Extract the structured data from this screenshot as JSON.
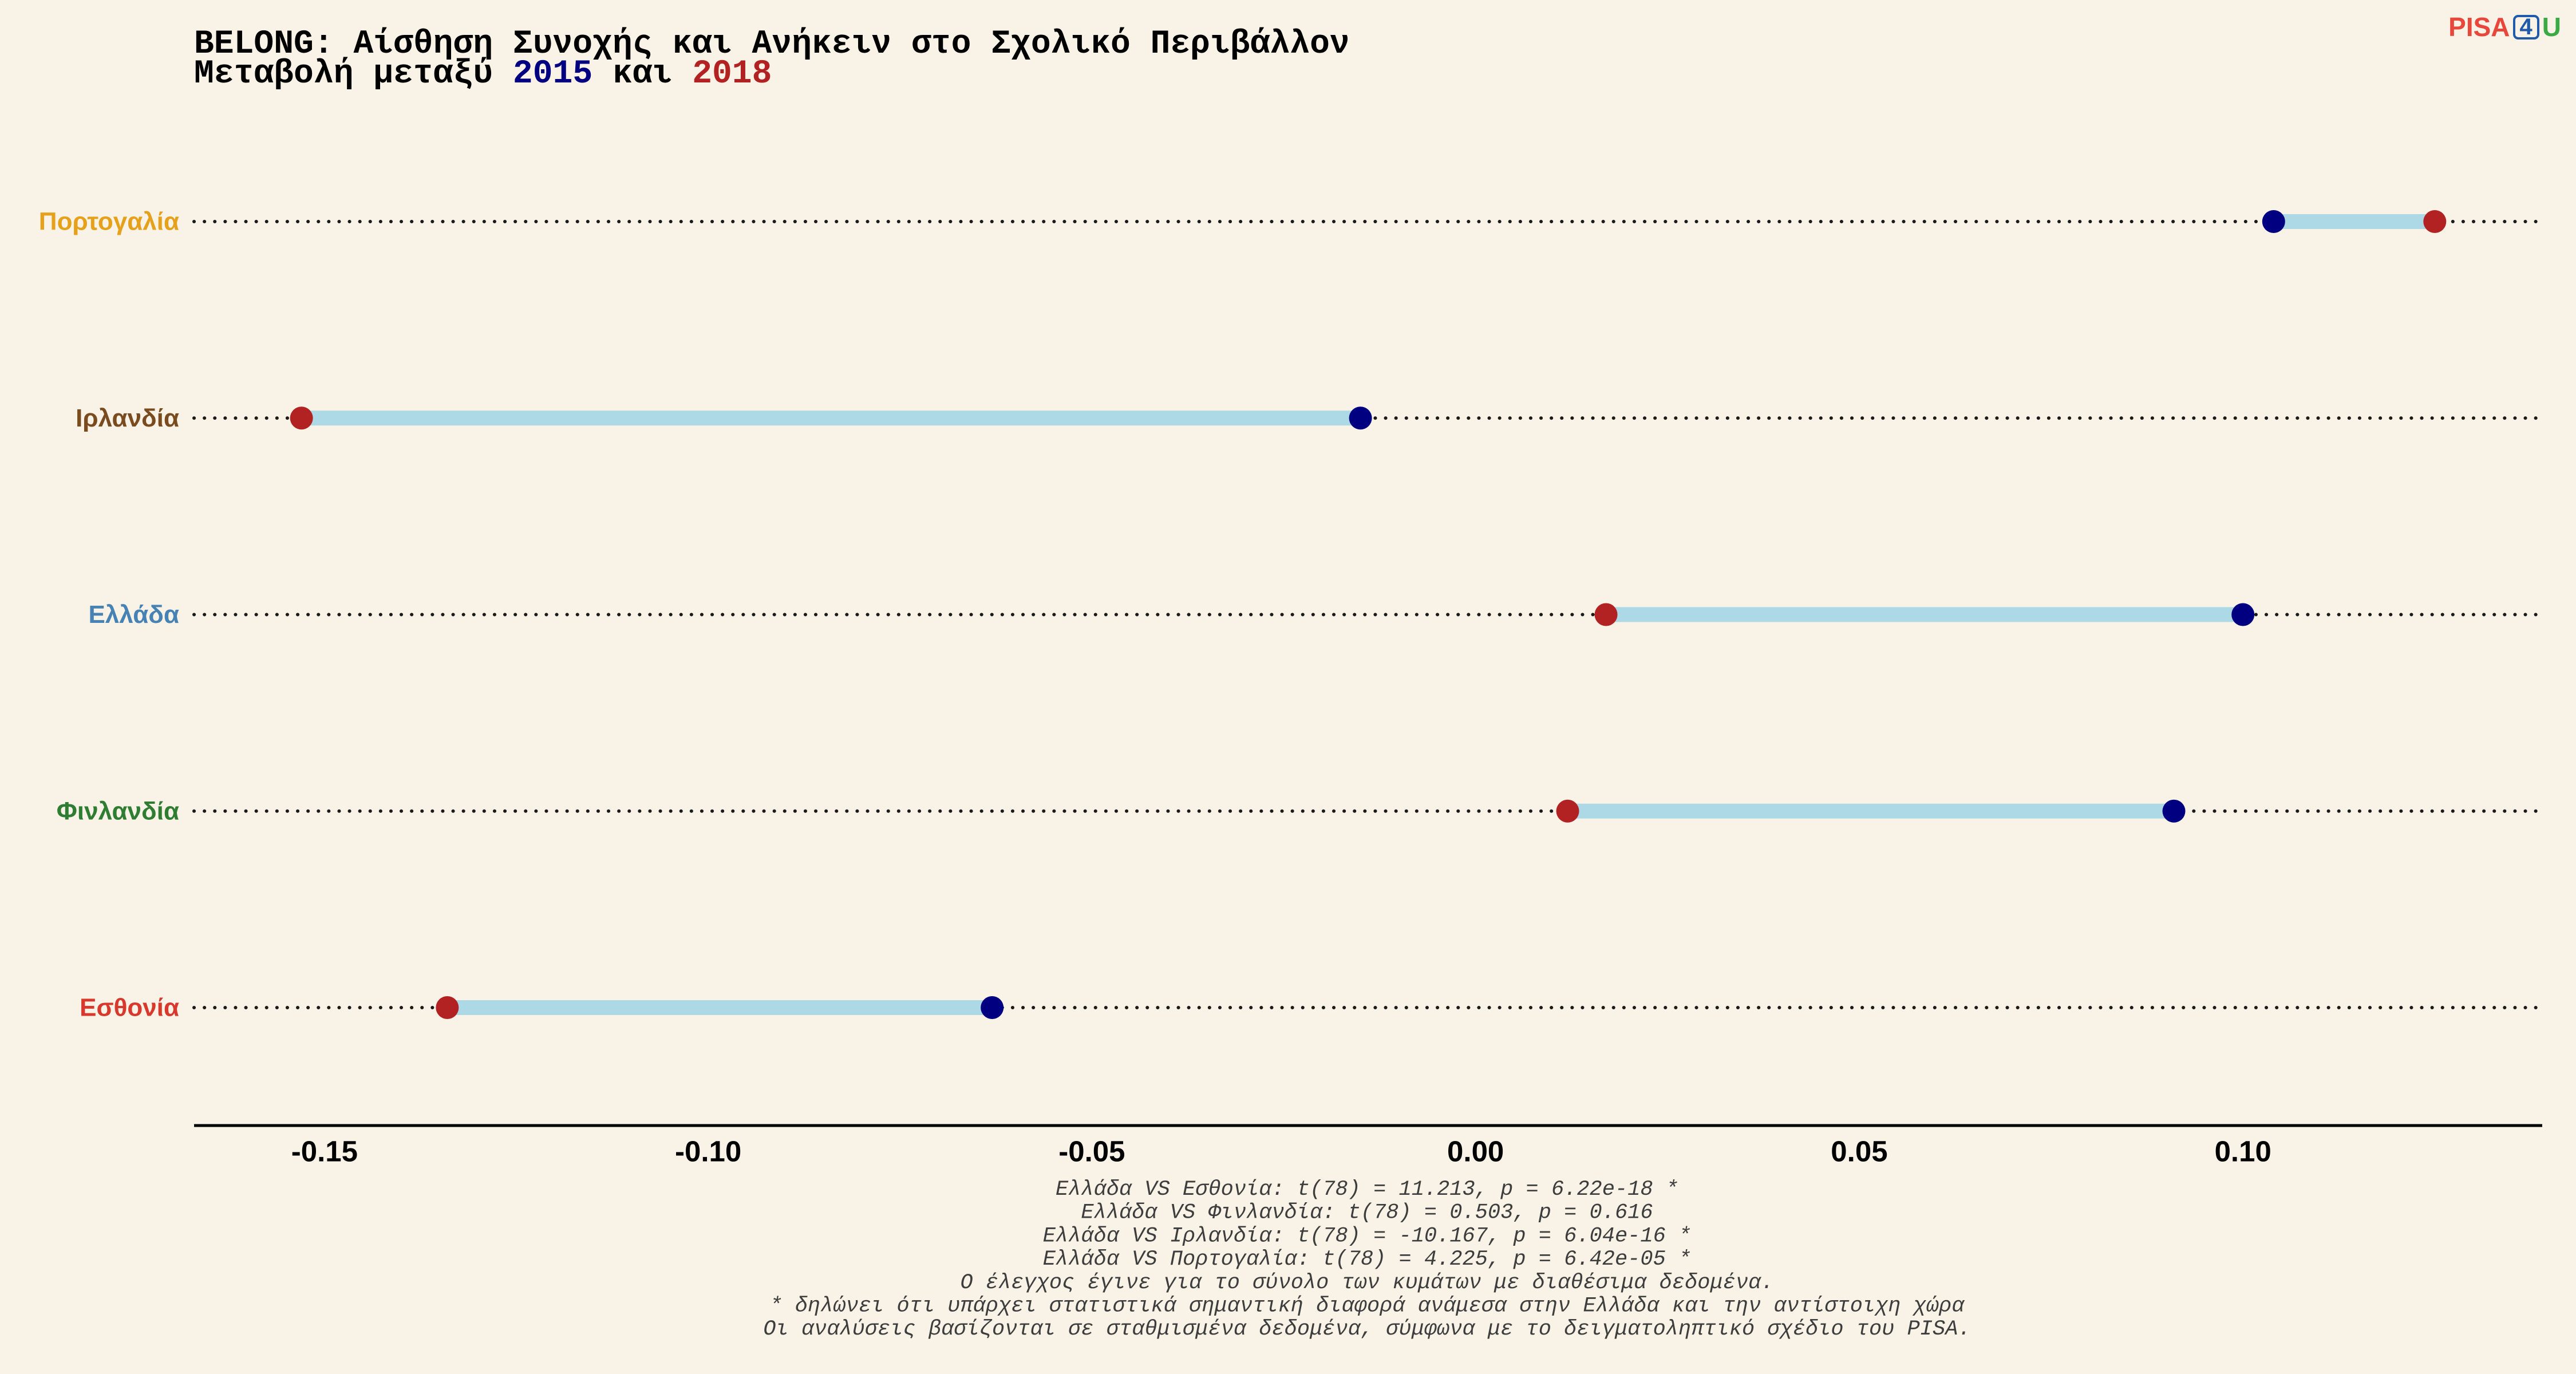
{
  "chart_data": {
    "type": "scatter",
    "style": "dumbbell",
    "orientation": "horizontal",
    "title": "BELONG: Αίσθηση Συνοχής και Ανήκειν στο Σχολικό Περιβάλλον",
    "subtitle": {
      "prefix": "Μεταβολή μεταξύ",
      "middle": "και"
    },
    "categories": [
      "Πορτογαλία",
      "Ιρλανδία",
      "Ελλάδα",
      "Φινλανδία",
      "Εσθονία"
    ],
    "category_colors": [
      "#E5A11C",
      "#7A4B1F",
      "#4682B4",
      "#2E7D32",
      "#D9382C"
    ],
    "series": [
      {
        "name": "2015",
        "color": "#000080",
        "values": [
          0.104,
          -0.015,
          0.1,
          0.091,
          -0.063
        ]
      },
      {
        "name": "2018",
        "color": "#B22222",
        "values": [
          0.125,
          -0.153,
          0.017,
          0.012,
          -0.134
        ]
      }
    ],
    "connector_color": "#ADD8E6",
    "x_ticks": [
      -0.15,
      -0.1,
      -0.05,
      0.0,
      0.05,
      0.1
    ],
    "x_tick_labels": [
      "-0.15",
      "-0.10",
      "-0.05",
      "0.00",
      "0.05",
      "0.10"
    ],
    "xlim": [
      -0.167,
      0.139
    ],
    "grid": "horizontal-dotted",
    "legend": "none",
    "notes": [
      "Ελλάδα VS Εσθονία: t(78) = 11.213, p = 6.22e-18 *",
      "Ελλάδα VS Φινλανδία: t(78) = 0.503, p = 0.616",
      "Ελλάδα VS Ιρλανδία: t(78) = -10.167, p = 6.04e-16 *",
      "Ελλάδα VS Πορτογαλία: t(78) = 4.225, p = 6.42e-05 *",
      "Ο έλεγχος έγινε για το σύνολο των κυμάτων με διαθέσιμα δεδομένα.",
      "* δηλώνει ότι υπάρχει στατιστικά σημαντική διαφορά ανάμεσα στην Ελλάδα και την αντίστοιχη χώρα",
      "Οι αναλύσεις βασίζονται σε σταθμισμένα δεδομένα, σύμφωνα με το δειγματοληπτικό σχέδιο του PISA."
    ]
  },
  "logo": {
    "text_a": "PISA",
    "text_b": "4",
    "text_c": "U",
    "color_a": "#E8473B",
    "color_b": "#1F5BA8",
    "color_c": "#3BAA45"
  },
  "theme": {
    "background": "#F8F3E6"
  }
}
